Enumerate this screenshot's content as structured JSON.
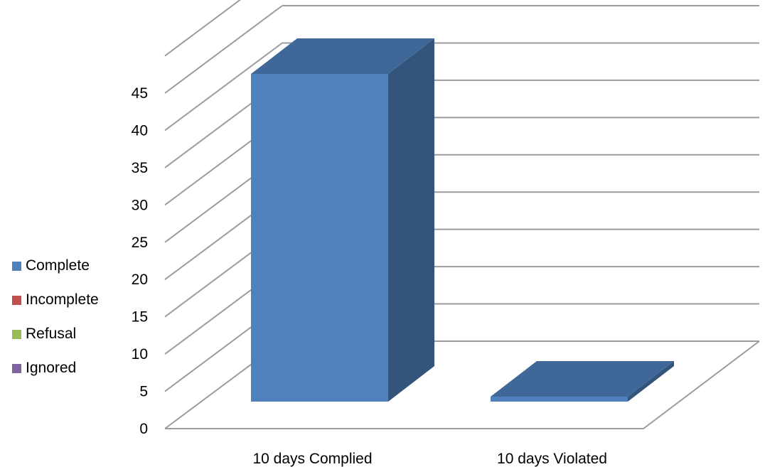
{
  "chart_data": {
    "type": "bar",
    "style": "3d-column",
    "title": "",
    "xlabel": "",
    "ylabel": "",
    "categories": [
      "10 days Complied",
      "10 days Violated"
    ],
    "series": [
      {
        "name": "Complete",
        "color": "#4F81BD",
        "values": [
          44,
          0
        ]
      },
      {
        "name": "Incomplete",
        "color": "#C0504D",
        "values": [
          0,
          0
        ]
      },
      {
        "name": "Refusal",
        "color": "#9BBB59",
        "values": [
          0,
          0
        ]
      },
      {
        "name": "Ignored",
        "color": "#8064A2",
        "values": [
          0,
          0
        ]
      }
    ],
    "ylim": [
      0,
      45
    ],
    "yticks": [
      "0",
      "5",
      "10",
      "15",
      "20",
      "25",
      "30",
      "35",
      "40",
      "45"
    ],
    "grid": true,
    "legend_position": "left"
  }
}
